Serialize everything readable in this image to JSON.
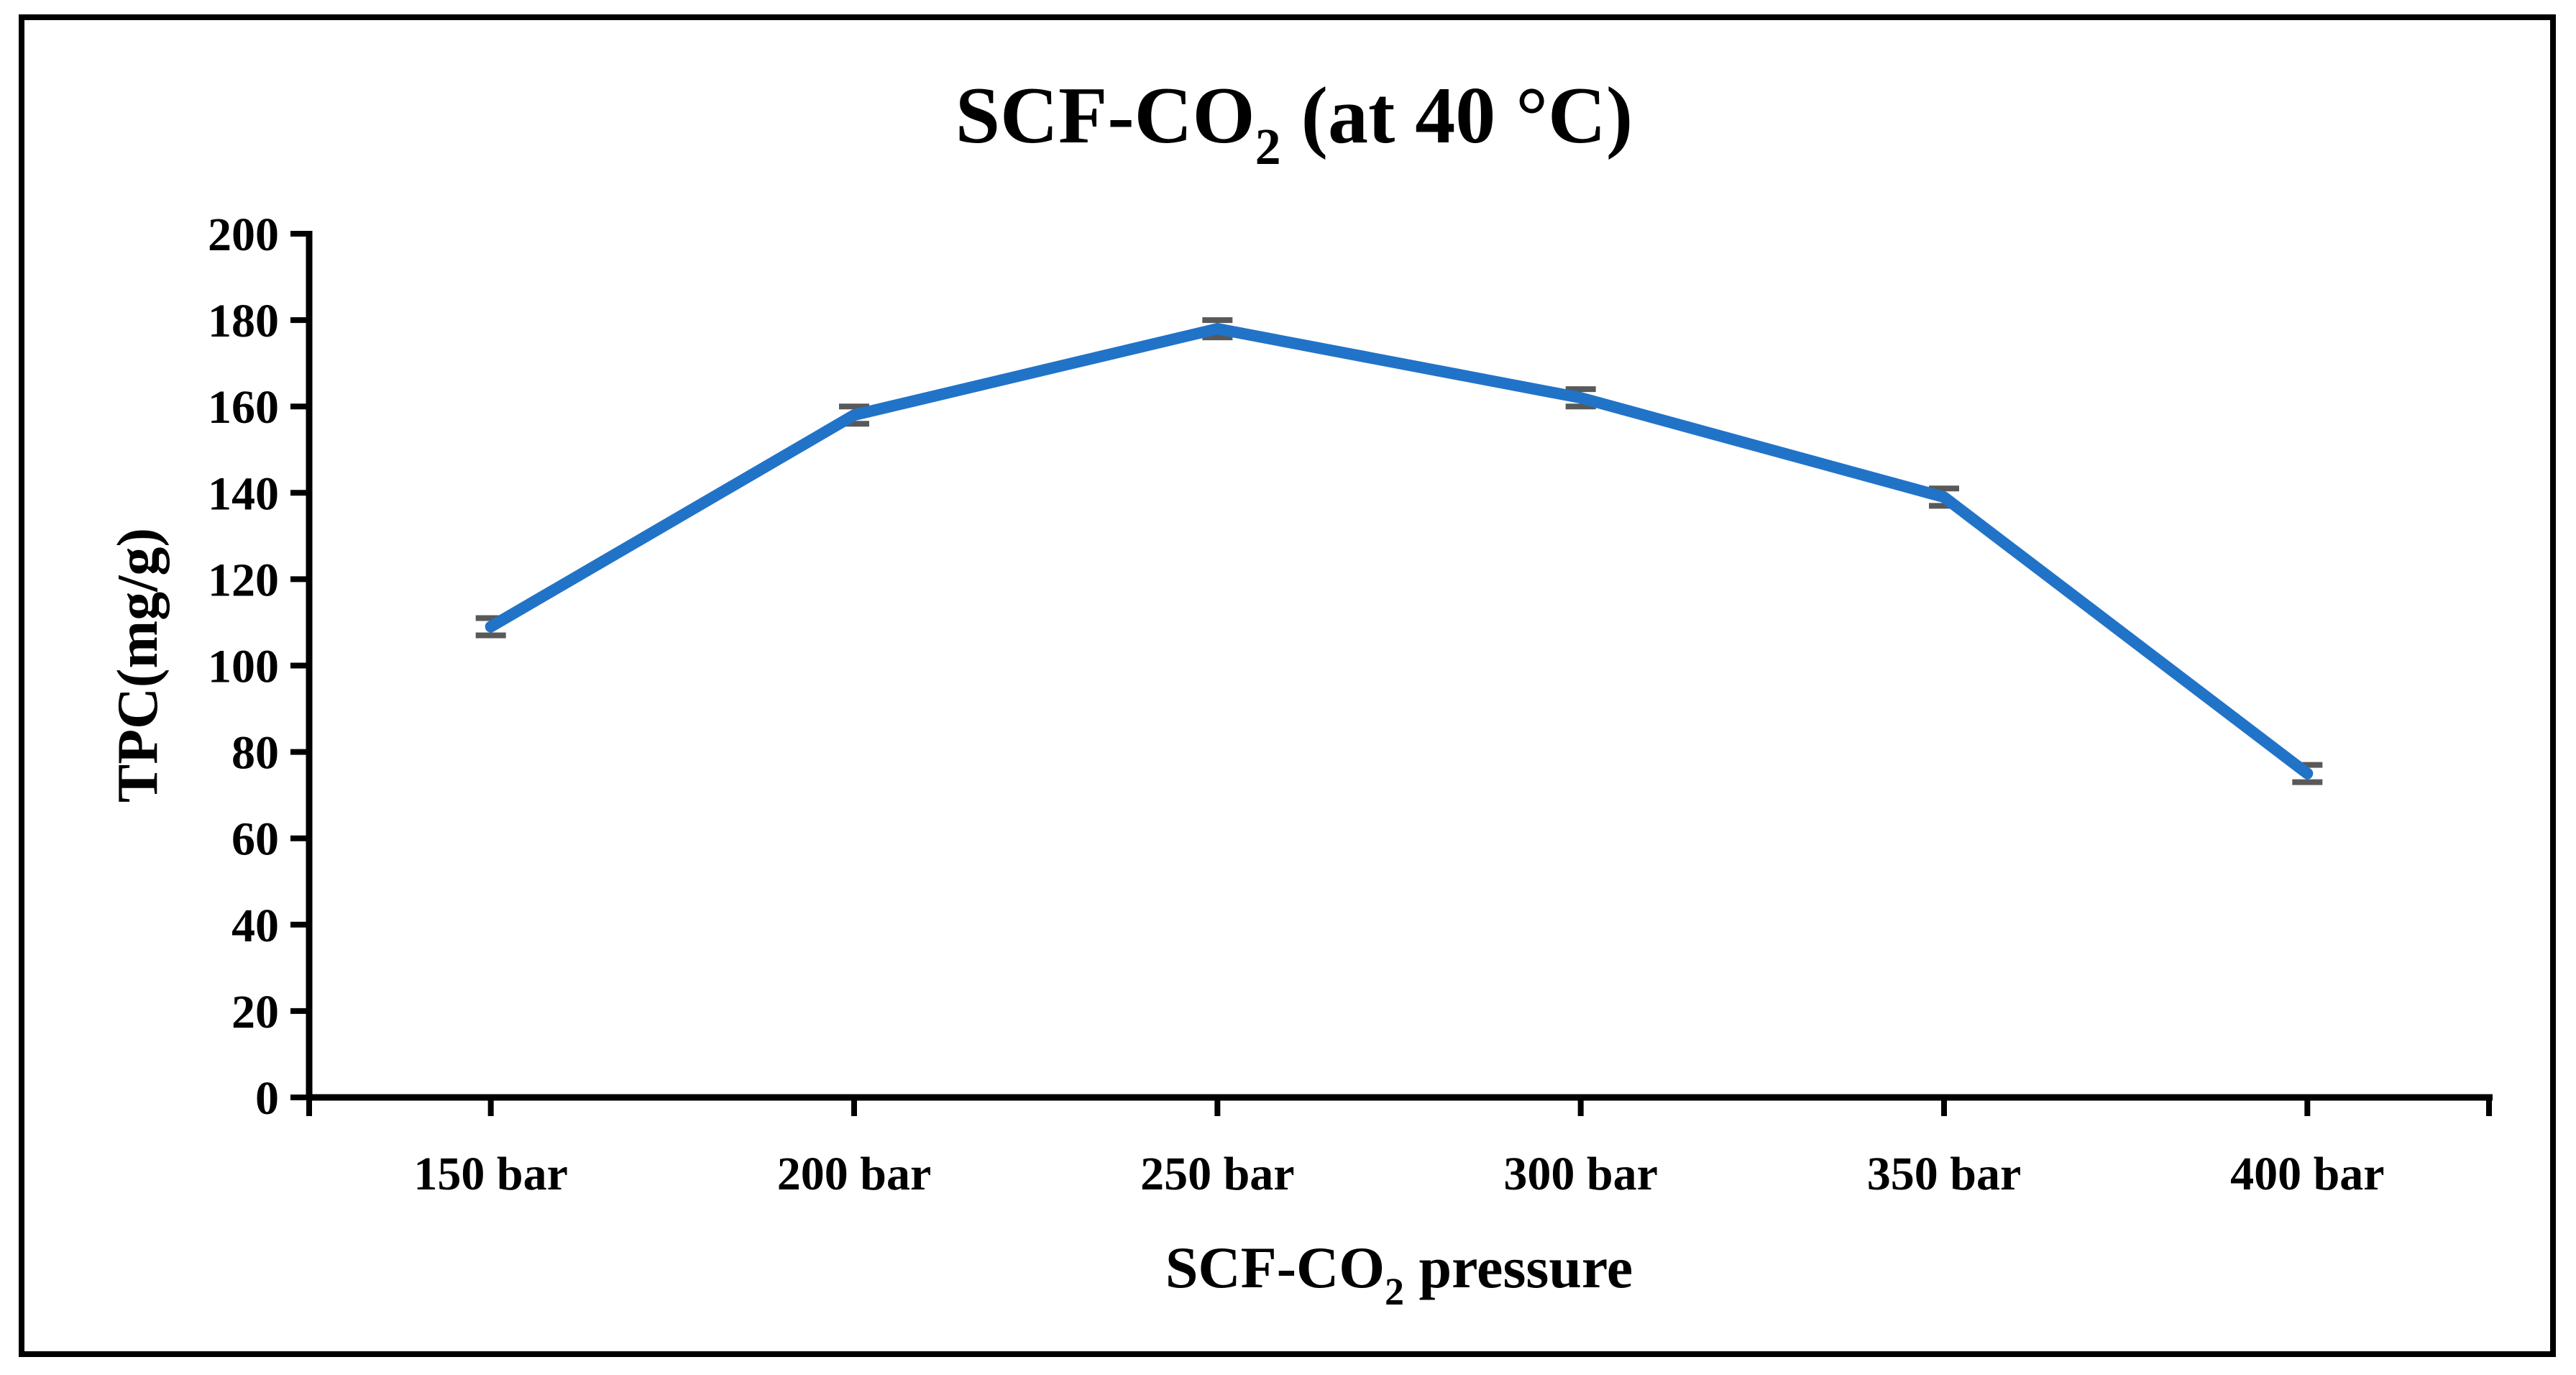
{
  "figure": {
    "background": "#ffffff",
    "border_color": "#000000"
  },
  "chart_data": {
    "type": "line",
    "title": {
      "text": "SCF-CO2 (at 40 °C)",
      "prefix": "SCF-CO",
      "sub": "2",
      "suffix": " (at 40 °C)"
    },
    "x_axis": {
      "title_text": "SCF-CO2 pressure",
      "title_prefix": "SCF-CO",
      "title_sub": "2",
      "title_suffix": " pressure",
      "categories": [
        "150 bar",
        "200 bar",
        "250 bar",
        "300 bar",
        "350 bar",
        "400 bar"
      ]
    },
    "y_axis": {
      "label": "TPC(mg/g)",
      "min": 0,
      "max": 200,
      "step": 20,
      "tick_labels": [
        "0",
        "20",
        "40",
        "60",
        "80",
        "100",
        "120",
        "140",
        "160",
        "180",
        "200"
      ]
    },
    "series": [
      {
        "values": [
          109,
          158,
          178,
          162,
          139,
          75
        ],
        "error": [
          2,
          2,
          2,
          2,
          2,
          2
        ],
        "color": "#2173C8",
        "error_color": "#595959"
      }
    ],
    "grid": false,
    "legend": false
  }
}
